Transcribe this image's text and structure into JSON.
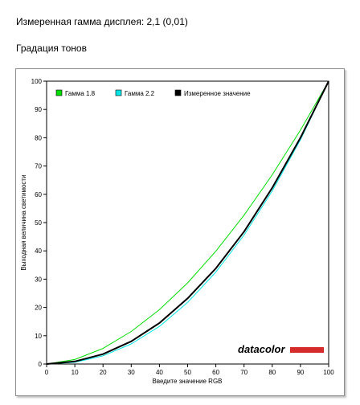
{
  "header": {
    "gamma_text": "Измеренная гамма дисплея: 2,1 (0,01)",
    "section_title": "Градация тонов"
  },
  "chart_data": {
    "type": "line",
    "title": "",
    "xlabel": "Введите значение RGB",
    "ylabel": "Выходная величина светимости",
    "xlim": [
      0,
      100
    ],
    "ylim": [
      0,
      100
    ],
    "xticks": [
      0,
      10,
      20,
      30,
      40,
      50,
      60,
      70,
      80,
      90,
      100
    ],
    "yticks": [
      0,
      10,
      20,
      30,
      40,
      50,
      60,
      70,
      80,
      90,
      100
    ],
    "grid": false,
    "legend_position": "top-left",
    "x": [
      0,
      10,
      20,
      30,
      40,
      50,
      60,
      70,
      80,
      90,
      100
    ],
    "series": [
      {
        "name": "Гамма 1.8",
        "color": "#00dd00",
        "values": [
          0,
          1.6,
          5.5,
          11.5,
          19.2,
          28.7,
          39.9,
          52.6,
          66.9,
          82.7,
          100
        ]
      },
      {
        "name": "Гамма 2.2",
        "color": "#00e5e5",
        "values": [
          0,
          0.6,
          2.9,
          7.1,
          13.3,
          21.8,
          32.5,
          45.6,
          61.2,
          79.3,
          100
        ]
      },
      {
        "name": "Измеренное значение",
        "color": "#000000",
        "values": [
          0,
          0.9,
          3.5,
          8.0,
          14.5,
          23.2,
          33.8,
          46.8,
          62.3,
          80.0,
          100
        ]
      }
    ],
    "brand_logo": "datacolor"
  }
}
